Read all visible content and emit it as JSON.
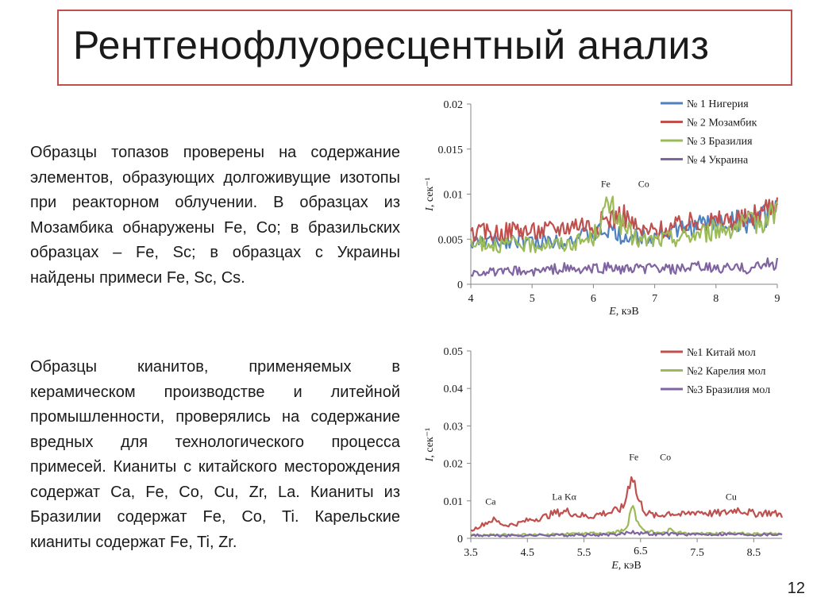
{
  "slide": {
    "title": "Рентгенофлуоресцентный анализ",
    "paragraph_1": "Образцы топазов проверены на содержание элементов, образующих долгоживущие изотопы при реакторном облучении. В образцах из Мозамбика обнаружены Fe, Co; в бразильских образцах – Fe, Sc; в образцах с Украины найдены примеси Fe, Sc, Cs.",
    "paragraph_2": "Образцы кианитов, применяемых в керамическом производстве и литейной промышленности, проверялись на содержание вредных для технологического процесса примесей. Кианиты с китайского месторождения содержат Ca, Fe, Co, Cu, Zr, La. Кианиты из Бразилии содержат Fe, Co, Ti. Карельские кианиты содержат Fe, Ti, Zr.",
    "page_number": "12"
  },
  "chart_data": [
    {
      "type": "line",
      "title": "",
      "xlabel": "E, кэВ",
      "ylabel": "I, сек⁻¹",
      "xlim": [
        4,
        9
      ],
      "ylim": [
        0,
        0.02
      ],
      "x_ticks": [
        "4",
        "5",
        "6",
        "7",
        "8",
        "9"
      ],
      "y_ticks": [
        "0",
        "0.005",
        "0.01",
        "0.015",
        "0.02"
      ],
      "legend_position": "top-right",
      "annotations": [
        {
          "text": "Fe",
          "x": 6.2,
          "y": 0.0108
        },
        {
          "text": "Co",
          "x": 6.82,
          "y": 0.0108
        }
      ],
      "series": [
        {
          "name": "№ 1 Нигерия",
          "color": "#4f81bd",
          "x": [
            4.0,
            4.25,
            4.5,
            4.75,
            5.0,
            5.25,
            5.5,
            5.75,
            6.0,
            6.25,
            6.5,
            6.75,
            7.0,
            7.25,
            7.5,
            7.75,
            8.0,
            8.25,
            8.5,
            8.75,
            9.0
          ],
          "y": [
            0.0045,
            0.0048,
            0.0047,
            0.005,
            0.0046,
            0.0049,
            0.0048,
            0.0052,
            0.0055,
            0.006,
            0.0053,
            0.0052,
            0.0055,
            0.0058,
            0.0061,
            0.0066,
            0.0068,
            0.007,
            0.0069,
            0.0072,
            0.0088
          ]
        },
        {
          "name": "№ 2 Мозамбик",
          "color": "#c0504d",
          "x": [
            4.0,
            4.25,
            4.5,
            4.75,
            5.0,
            5.25,
            5.5,
            5.75,
            6.0,
            6.25,
            6.5,
            6.75,
            7.0,
            7.25,
            7.5,
            7.75,
            8.0,
            8.25,
            8.5,
            8.75,
            9.0
          ],
          "y": [
            0.0055,
            0.0058,
            0.0057,
            0.0062,
            0.0058,
            0.006,
            0.0063,
            0.0068,
            0.0064,
            0.0073,
            0.0077,
            0.0058,
            0.0059,
            0.0062,
            0.0066,
            0.0071,
            0.0069,
            0.0072,
            0.0071,
            0.0081,
            0.0092
          ]
        },
        {
          "name": "№ 3 Бразилия",
          "color": "#9bbb59",
          "x": [
            4.0,
            4.25,
            4.5,
            4.75,
            5.0,
            5.25,
            5.5,
            5.75,
            6.0,
            6.25,
            6.5,
            6.75,
            7.0,
            7.25,
            7.5,
            7.75,
            8.0,
            8.25,
            8.5,
            8.75,
            9.0
          ],
          "y": [
            0.0042,
            0.0046,
            0.0044,
            0.0045,
            0.0043,
            0.0046,
            0.0044,
            0.0047,
            0.0052,
            0.0088,
            0.0062,
            0.0048,
            0.0049,
            0.0051,
            0.0053,
            0.0057,
            0.0061,
            0.0064,
            0.0066,
            0.0071,
            0.0083
          ]
        },
        {
          "name": "№ 4 Украина",
          "color": "#8064a2",
          "x": [
            4.0,
            4.25,
            4.5,
            4.75,
            5.0,
            5.25,
            5.5,
            5.75,
            6.0,
            6.25,
            6.5,
            6.75,
            7.0,
            7.25,
            7.5,
            7.75,
            8.0,
            8.25,
            8.5,
            8.75,
            9.0
          ],
          "y": [
            0.0012,
            0.0014,
            0.0013,
            0.0015,
            0.0013,
            0.0016,
            0.0018,
            0.0015,
            0.0017,
            0.0019,
            0.0016,
            0.0017,
            0.0018,
            0.0016,
            0.0017,
            0.0019,
            0.0017,
            0.0018,
            0.0017,
            0.0021,
            0.0023
          ]
        }
      ]
    },
    {
      "type": "line",
      "title": "",
      "xlabel": "E, кэВ",
      "ylabel": "I, сек⁻¹",
      "xlim": [
        3.5,
        9.0
      ],
      "ylim": [
        0,
        0.05
      ],
      "x_ticks": [
        "3.5",
        "4.5",
        "5.5",
        "6.5",
        "7.5",
        "8.5"
      ],
      "y_ticks": [
        "0",
        "0.01",
        "0.02",
        "0.03",
        "0.04",
        "0.05"
      ],
      "legend_position": "top-right",
      "annotations": [
        {
          "text": "Ca",
          "x": 3.85,
          "y": 0.009
        },
        {
          "text": "La Kα",
          "x": 5.15,
          "y": 0.0103
        },
        {
          "text": "Fe",
          "x": 6.38,
          "y": 0.0209
        },
        {
          "text": "Co",
          "x": 6.94,
          "y": 0.0209
        },
        {
          "text": "Cu",
          "x": 8.1,
          "y": 0.0103
        }
      ],
      "series": [
        {
          "name": "№1 Китай мол",
          "color": "#c0504d",
          "x": [
            3.5,
            3.75,
            3.9,
            4.1,
            4.3,
            4.5,
            4.75,
            5.0,
            5.2,
            5.4,
            5.6,
            5.8,
            6.0,
            6.2,
            6.35,
            6.45,
            6.6,
            6.8,
            7.0,
            7.25,
            7.5,
            7.75,
            8.0,
            8.2,
            8.5,
            8.75,
            9.0
          ],
          "y": [
            0.002,
            0.004,
            0.005,
            0.0035,
            0.0038,
            0.0048,
            0.0055,
            0.0068,
            0.0072,
            0.0062,
            0.0058,
            0.0066,
            0.007,
            0.0082,
            0.018,
            0.0105,
            0.0068,
            0.0058,
            0.0069,
            0.0062,
            0.0072,
            0.0066,
            0.0068,
            0.0078,
            0.0066,
            0.0069,
            0.0063
          ]
        },
        {
          "name": "№2 Карелия мол",
          "color": "#9bbb59",
          "x": [
            3.5,
            4.0,
            4.5,
            5.0,
            5.5,
            6.0,
            6.2,
            6.35,
            6.45,
            6.6,
            6.8,
            7.0,
            7.25,
            7.5,
            8.0,
            8.5,
            9.0
          ],
          "y": [
            0.0008,
            0.0009,
            0.001,
            0.0011,
            0.0012,
            0.0014,
            0.002,
            0.0075,
            0.0045,
            0.0018,
            0.0014,
            0.0022,
            0.0013,
            0.0012,
            0.0013,
            0.0012,
            0.0013
          ]
        },
        {
          "name": "№3 Бразилия мол",
          "color": "#8064a2",
          "x": [
            3.5,
            4.0,
            4.5,
            5.0,
            5.5,
            6.0,
            6.2,
            6.35,
            6.5,
            6.8,
            7.0,
            7.25,
            7.5,
            8.0,
            8.5,
            9.0
          ],
          "y": [
            0.0008,
            0.0007,
            0.0008,
            0.0009,
            0.0008,
            0.001,
            0.0013,
            0.0019,
            0.0014,
            0.0011,
            0.0012,
            0.0011,
            0.001,
            0.0012,
            0.001,
            0.0011
          ]
        }
      ]
    }
  ]
}
